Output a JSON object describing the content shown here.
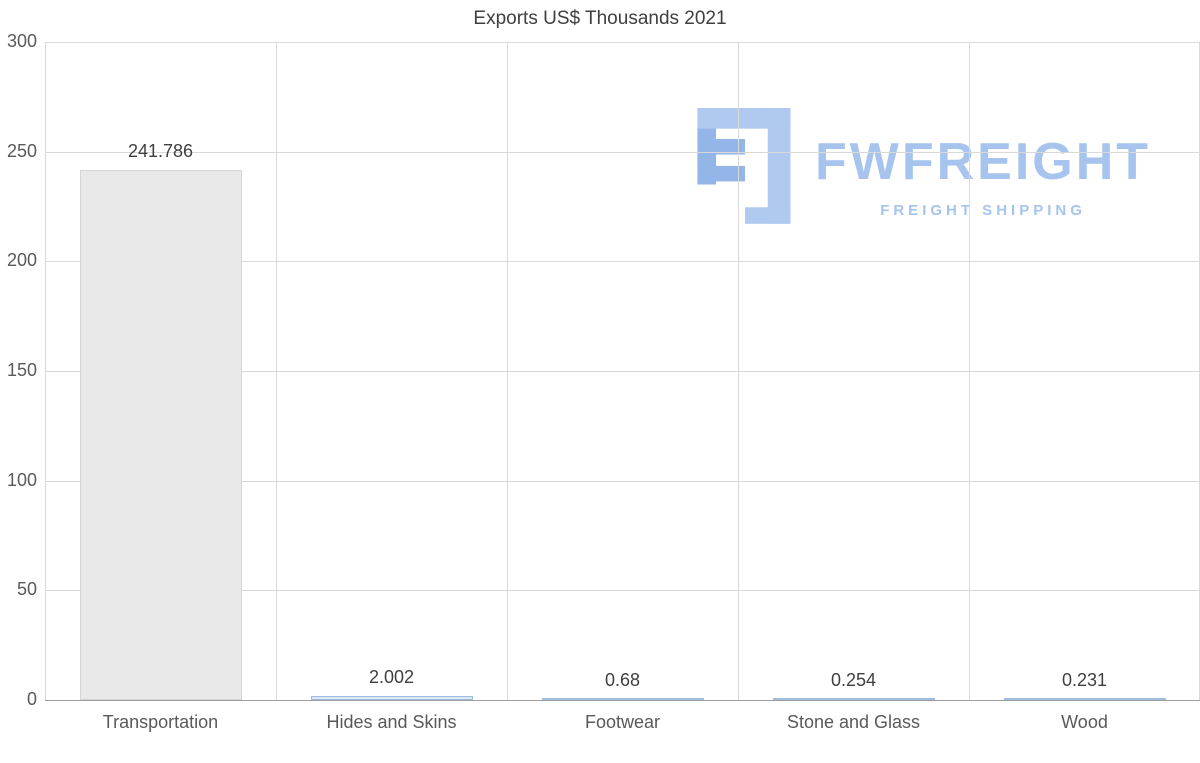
{
  "chart_data": {
    "type": "bar",
    "title": "Exports US$ Thousands 2021",
    "categories": [
      "Transportation",
      "Hides and Skins",
      "Footwear",
      "Stone and Glass",
      "Wood"
    ],
    "values": [
      241.786,
      2.002,
      0.68,
      0.254,
      0.231
    ],
    "value_labels": [
      "241.786",
      "2.002",
      "0.68",
      "0.254",
      "0.231"
    ],
    "ylim": [
      0,
      300
    ],
    "yticks": [
      0,
      50,
      100,
      150,
      200,
      250,
      300
    ],
    "grid": true,
    "legend": "none",
    "bar_colors": [
      "#e9e9e9",
      "#dce9fa",
      "#dce9fa",
      "#dce9fa",
      "#dce9fa"
    ],
    "bar_borders": [
      "#d5d5d5",
      "#9fbcdf",
      "#9fbcdf",
      "#9fbcdf",
      "#9fbcdf"
    ],
    "gridline_color": "#d9d9d9",
    "axis_line_color": "#9e9e9e",
    "label_color": "#595959"
  },
  "watermark": {
    "brand": "FWFREIGHT",
    "tagline": "FREIGHT SHIPPING",
    "color": "#a6c4ed"
  }
}
